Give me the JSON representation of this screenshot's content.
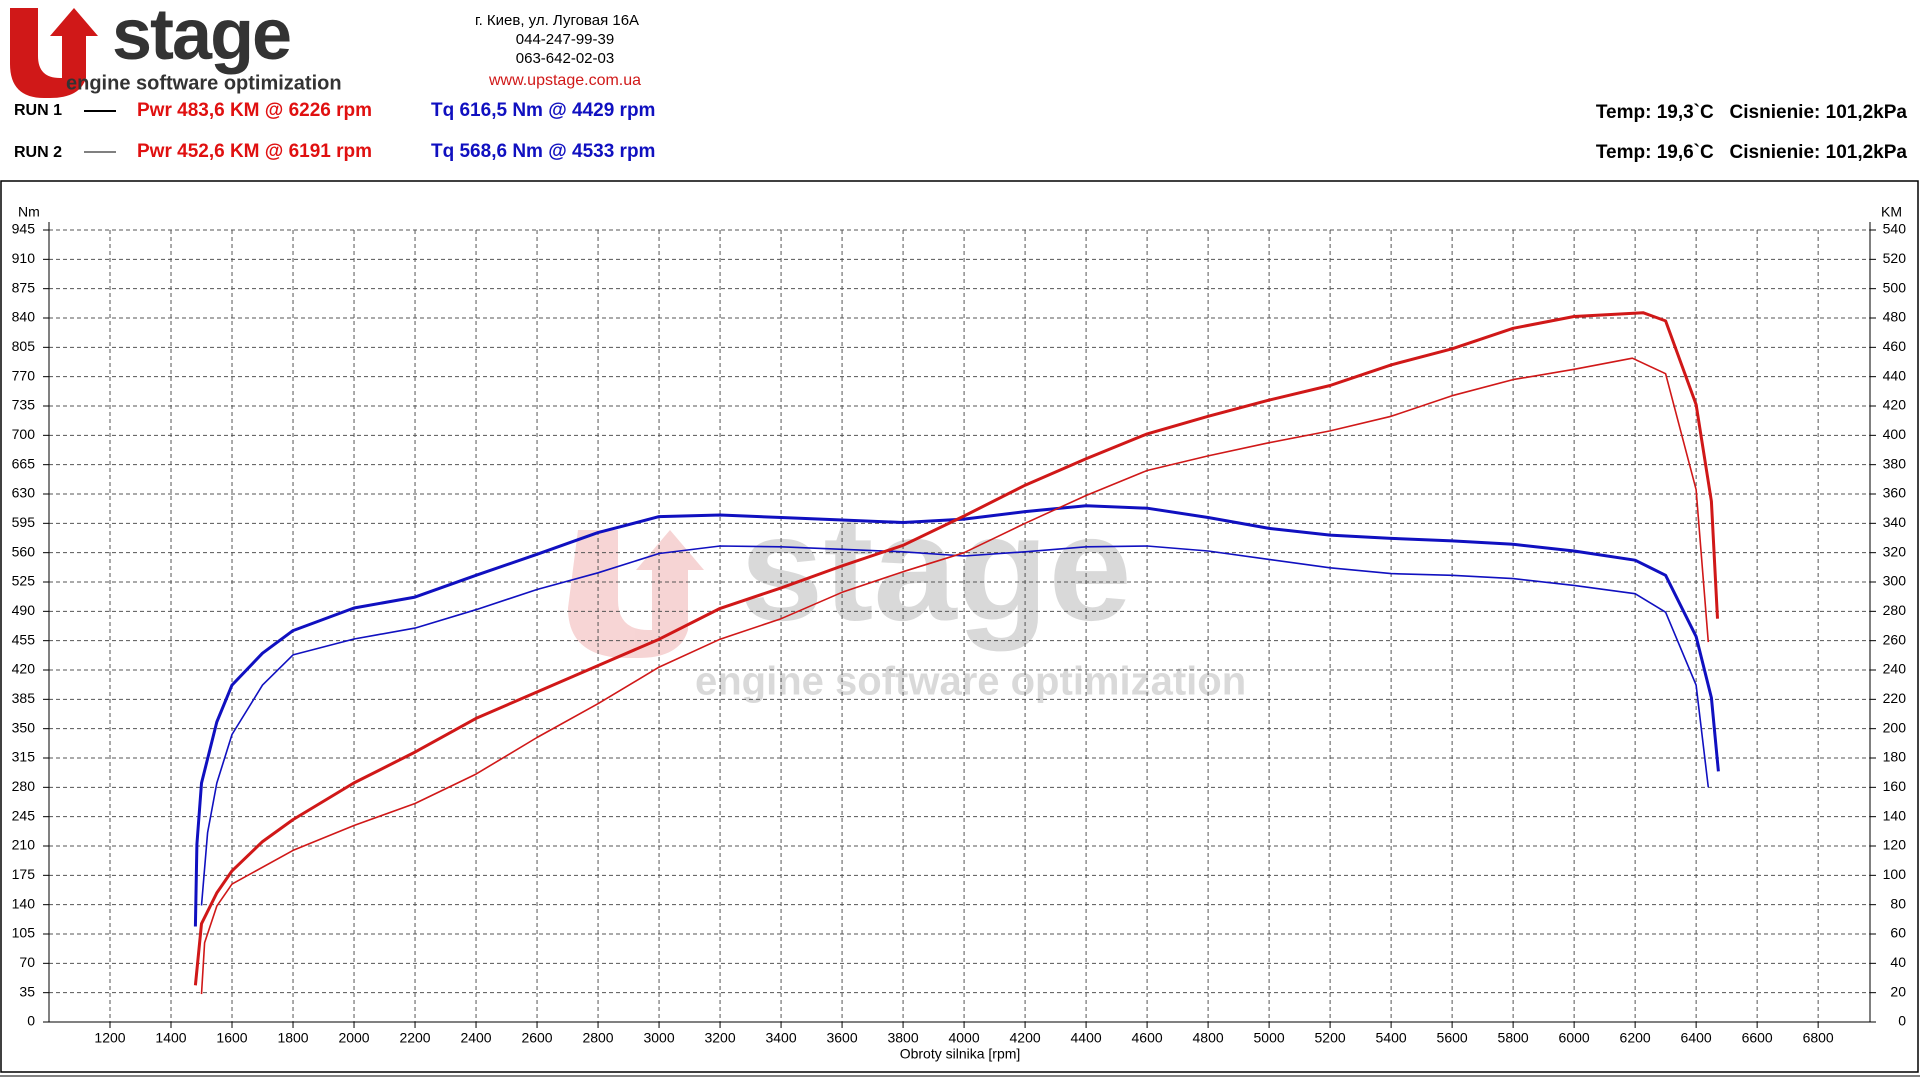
{
  "header": {
    "logo": "stage",
    "slogan": "engine software optimization",
    "address": [
      "г. Киев, ул. Луговая 16А",
      "044-247-99-39",
      "063-642-02-03"
    ],
    "website": "www.upstage.com.ua"
  },
  "runs": [
    {
      "label": "RUN 1",
      "power": "Pwr  483,6 KM @ 6226 rpm",
      "torque": "Tq 616,5 Nm @ 4429 rpm",
      "conditions": "Temp: 19,3`C   Cisnienie: 101,2kPa"
    },
    {
      "label": "RUN 2",
      "power": "Pwr  452,6 KM @ 6191 rpm",
      "torque": "Tq 568,6 Nm @ 4533 rpm",
      "conditions": "Temp: 19,6`C   Cisnienie: 101,2kPa"
    }
  ],
  "chart_data": {
    "type": "line",
    "x_label": "Obroty silnika [rpm]",
    "y_label": "Nm",
    "y2_label": "KM",
    "xlim": [
      1000,
      6970
    ],
    "xticks": [
      1200,
      1400,
      1600,
      1800,
      2000,
      2200,
      2400,
      2600,
      2800,
      3000,
      3200,
      3400,
      3600,
      3800,
      4000,
      4200,
      4400,
      4600,
      4800,
      5000,
      5200,
      5400,
      5600,
      5800,
      6000,
      6200,
      6400,
      6600,
      6800
    ],
    "ylim": [
      0,
      945
    ],
    "yticks": [
      0,
      35,
      70,
      105,
      140,
      175,
      210,
      245,
      280,
      315,
      350,
      385,
      420,
      455,
      490,
      525,
      560,
      595,
      630,
      665,
      700,
      735,
      770,
      805,
      840,
      875,
      910,
      945
    ],
    "y2lim": [
      0,
      540
    ],
    "y2ticks": [
      0,
      20,
      40,
      60,
      80,
      100,
      120,
      140,
      160,
      180,
      200,
      220,
      240,
      260,
      280,
      300,
      320,
      340,
      360,
      380,
      400,
      420,
      440,
      460,
      480,
      500,
      520,
      540
    ],
    "grid": true,
    "series": [
      {
        "name": "RUN 1",
        "color": "#1010c0",
        "width": 3,
        "x": [
          1480,
          1485,
          1500,
          1550,
          1600,
          1700,
          1800,
          2000,
          2200,
          2400,
          2600,
          2800,
          3000,
          3200,
          3400,
          3600,
          3800,
          4000,
          4200,
          4400,
          4600,
          4800,
          5000,
          5200,
          5400,
          5600,
          5800,
          6000,
          6200,
          6300,
          6400,
          6450,
          6473
        ],
        "values": [
          114,
          212,
          285,
          358,
          402,
          440,
          467,
          494,
          507,
          533,
          558,
          584,
          603,
          605,
          602,
          599,
          596,
          600,
          609,
          616,
          613,
          602,
          589,
          581,
          577,
          574,
          570,
          562,
          551,
          533,
          460,
          387,
          299
        ]
      },
      {
        "name": "RUN 2",
        "color": "#1010c0",
        "width": 1.6,
        "x": [
          1500,
          1520,
          1550,
          1600,
          1700,
          1800,
          2000,
          2200,
          2400,
          2600,
          2800,
          3000,
          3200,
          3400,
          3600,
          3800,
          4000,
          4200,
          4400,
          4600,
          4800,
          5000,
          5200,
          5400,
          5600,
          5800,
          6000,
          6200,
          6300,
          6400,
          6440
        ],
        "values": [
          139,
          226,
          285,
          343,
          402,
          438,
          457,
          470,
          492,
          516,
          536,
          559,
          568,
          567,
          564,
          561,
          556,
          561,
          567,
          568,
          562,
          552,
          542,
          535,
          533,
          529,
          521,
          511,
          489,
          402,
          280
        ]
      },
      {
        "name": "RUN 1",
        "color": "#d01818",
        "width": 3,
        "axis": "y2",
        "x": [
          1480,
          1500,
          1550,
          1600,
          1700,
          1800,
          2000,
          2200,
          2400,
          2600,
          2800,
          3000,
          3200,
          3400,
          3600,
          3800,
          4000,
          4200,
          4400,
          4600,
          4800,
          5000,
          5200,
          5400,
          5600,
          5800,
          6000,
          6226,
          6300,
          6400,
          6450,
          6470
        ],
        "values": [
          25,
          67,
          88,
          103,
          123,
          138,
          163,
          184,
          207,
          225,
          243,
          261,
          282,
          296,
          311,
          325,
          345,
          366,
          384,
          401,
          413,
          424,
          434,
          448,
          459,
          473,
          481,
          483.6,
          478,
          421,
          355,
          275
        ]
      },
      {
        "name": "RUN 2",
        "color": "#d01818",
        "width": 1.6,
        "axis": "y2",
        "x": [
          1500,
          1510,
          1550,
          1600,
          1800,
          2000,
          2200,
          2400,
          2600,
          2800,
          3000,
          3200,
          3400,
          3600,
          3800,
          4000,
          4200,
          4400,
          4600,
          4800,
          5000,
          5200,
          5400,
          5600,
          5800,
          6000,
          6191,
          6300,
          6400,
          6440
        ],
        "values": [
          19,
          54,
          79,
          94,
          117,
          134,
          149,
          169,
          194,
          217,
          242,
          261,
          275,
          293,
          307,
          320,
          340,
          359,
          376,
          386,
          395,
          403,
          413,
          427,
          438,
          445,
          452.6,
          442,
          363,
          259
        ]
      }
    ]
  }
}
